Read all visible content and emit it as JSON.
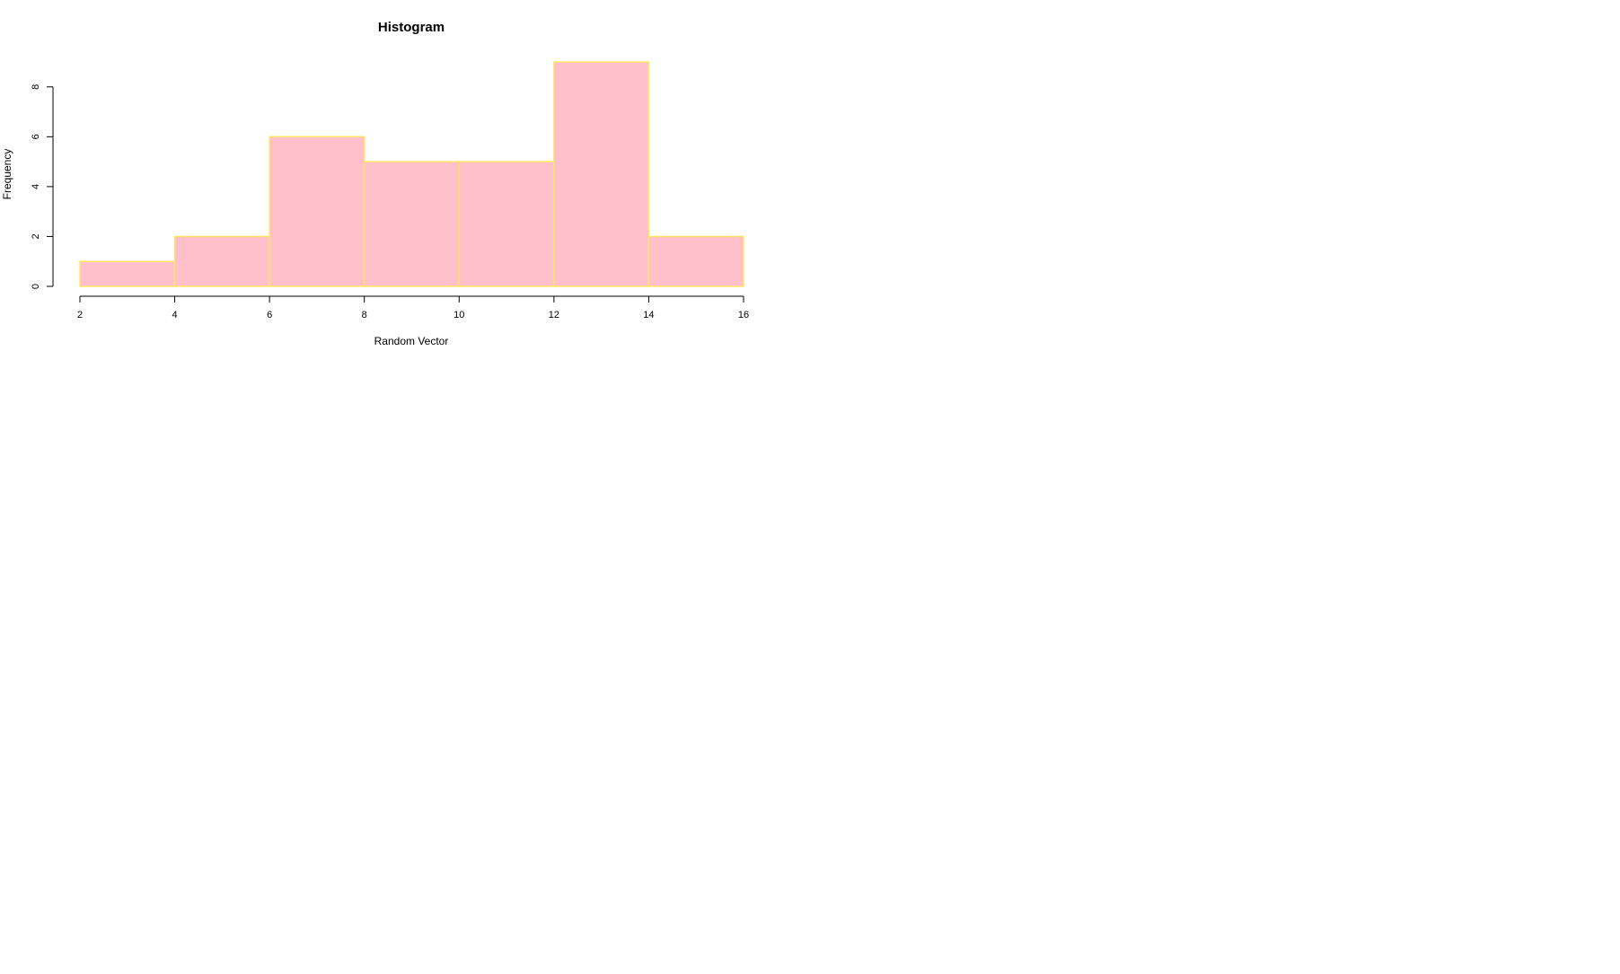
{
  "chart_data": {
    "type": "bar",
    "title": "Histogram",
    "xlabel": "Random Vector",
    "ylabel": "Frequency",
    "bins": [
      {
        "start": 2,
        "end": 4,
        "count": 1
      },
      {
        "start": 4,
        "end": 6,
        "count": 2
      },
      {
        "start": 6,
        "end": 8,
        "count": 6
      },
      {
        "start": 8,
        "end": 10,
        "count": 5
      },
      {
        "start": 10,
        "end": 12,
        "count": 5
      },
      {
        "start": 12,
        "end": 14,
        "count": 9
      },
      {
        "start": 14,
        "end": 16,
        "count": 2
      }
    ],
    "x_ticks": [
      2,
      4,
      6,
      8,
      10,
      12,
      14,
      16
    ],
    "y_ticks": [
      0,
      2,
      4,
      6,
      8
    ],
    "xlim": [
      2,
      16
    ],
    "ylim": [
      0,
      9
    ],
    "grid": false,
    "legend": "none",
    "colors": {
      "bar_fill": "#FFC0CB",
      "bar_border": "#FFE566"
    }
  }
}
